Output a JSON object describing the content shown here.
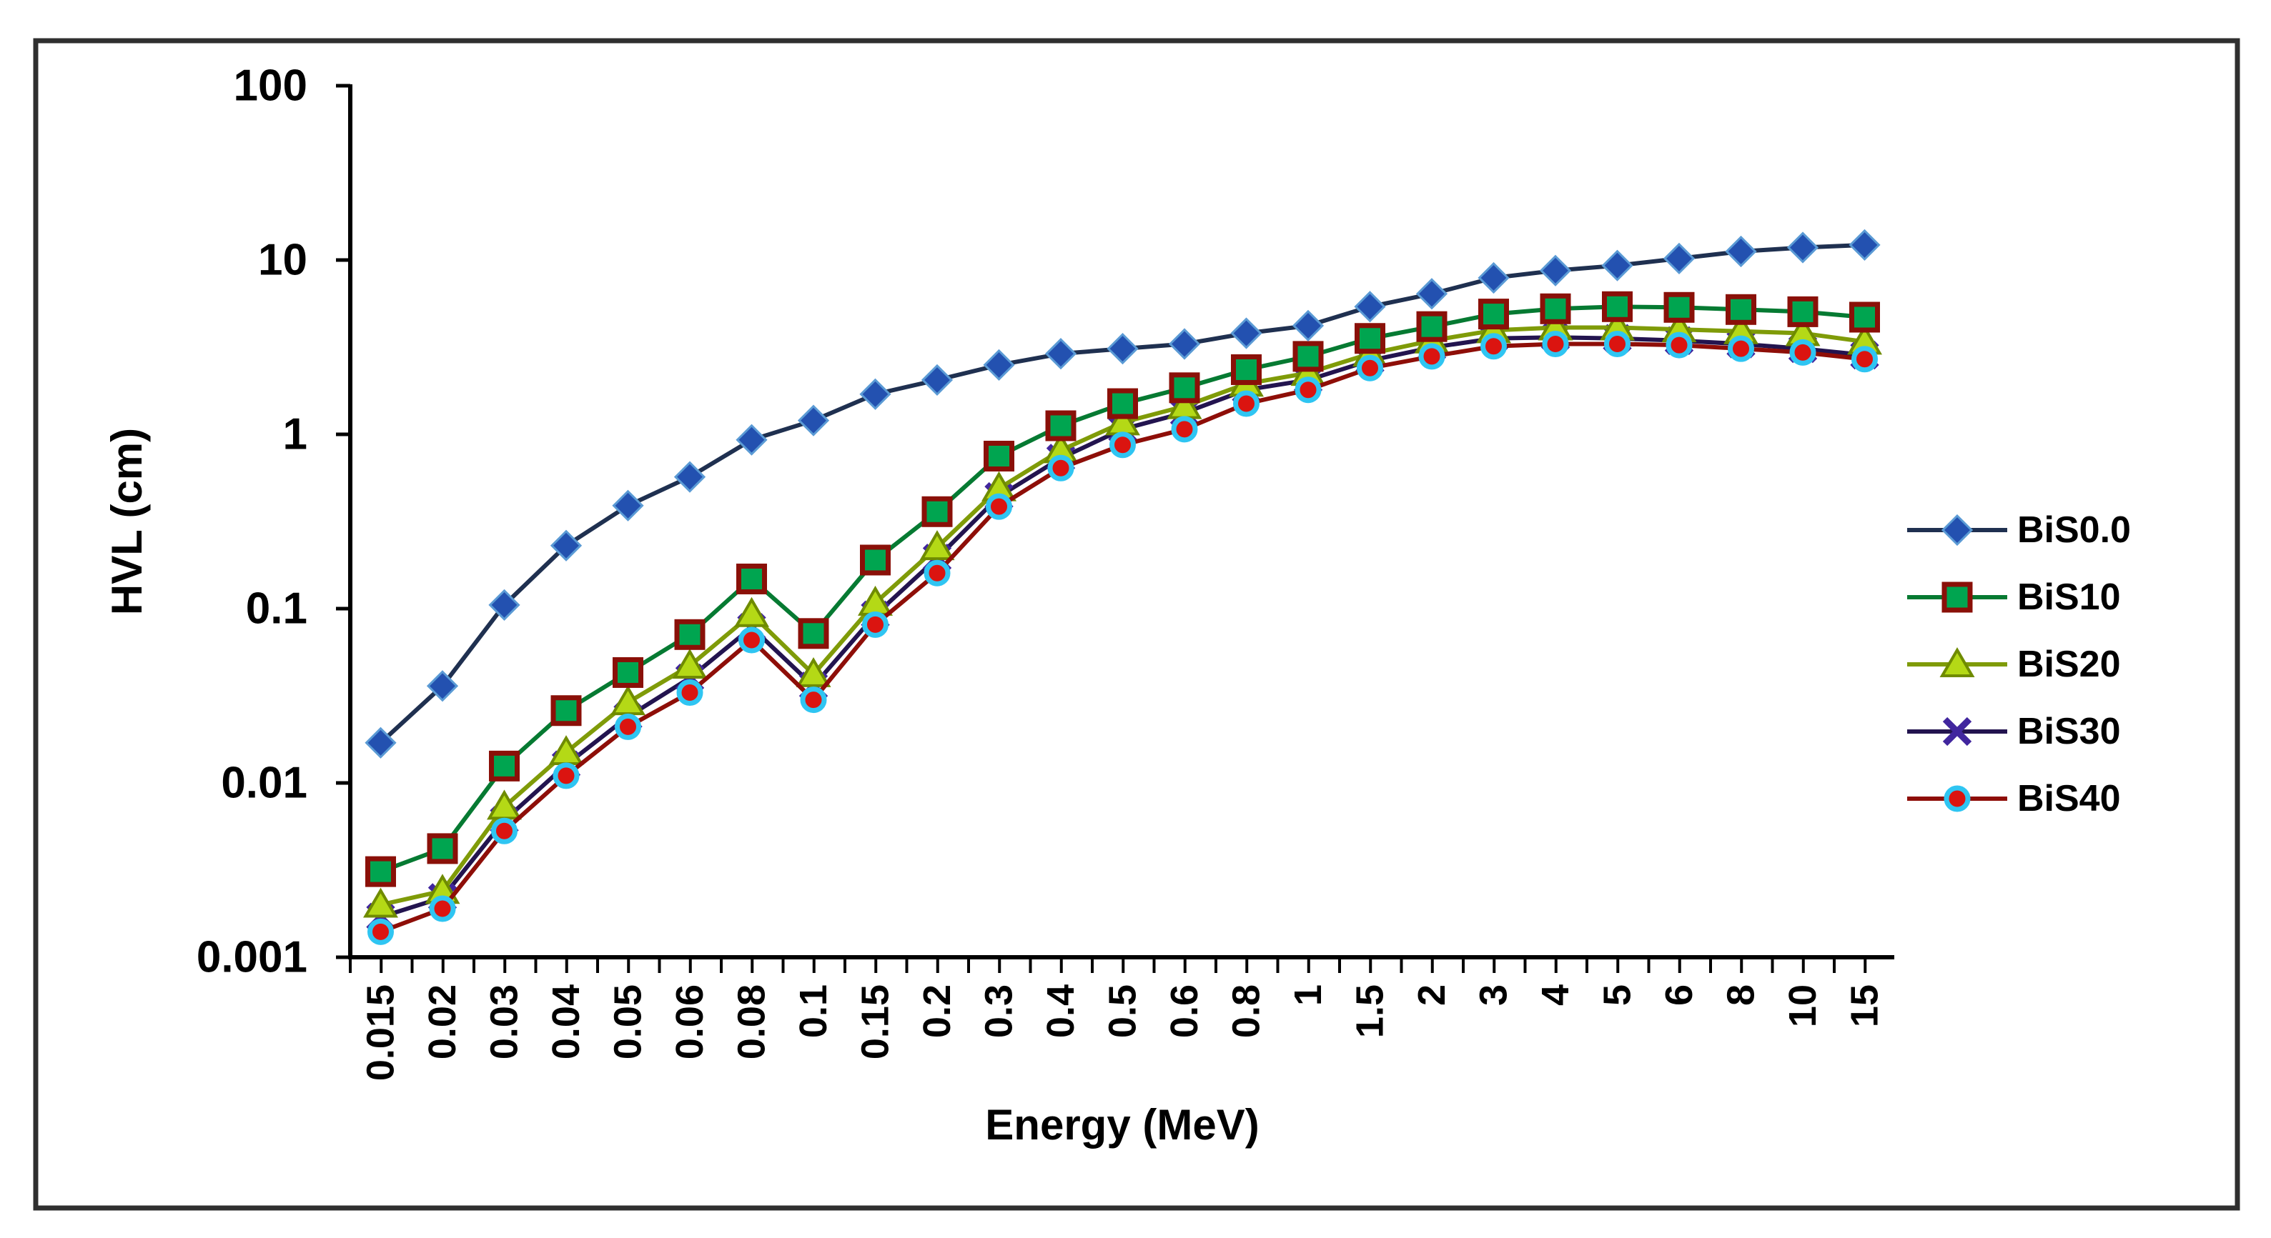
{
  "figure": {
    "background": "#ffffff",
    "border_color": "#2f2f2f",
    "axis_color": "#000000"
  },
  "chart_data": {
    "type": "line",
    "title": "",
    "xlabel": "Energy (MeV)",
    "ylabel": "HVL (cm)",
    "x_scale": "categorical",
    "y_scale": "log",
    "ylim": [
      0.001,
      100
    ],
    "y_tick_labels": [
      "100",
      "10",
      "1",
      "0.1",
      "0.01",
      "0.001"
    ],
    "grid": false,
    "legend_position": "right",
    "categories": [
      "0.015",
      "0.02",
      "0.03",
      "0.04",
      "0.05",
      "0.06",
      "0.08",
      "0.1",
      "0.15",
      "0.2",
      "0.3",
      "0.4",
      "0.5",
      "0.6",
      "0.8",
      "1",
      "1.5",
      "2",
      "3",
      "4",
      "5",
      "6",
      "8",
      "10",
      "15"
    ],
    "series": [
      {
        "name": "BiS0.0",
        "marker": "diamond",
        "line_color": "#1f3050",
        "marker_fill": "#2351b0",
        "marker_stroke": "#5b9bd5",
        "values": [
          0.017,
          0.036,
          0.105,
          0.23,
          0.39,
          0.57,
          0.93,
          1.2,
          1.7,
          2.05,
          2.5,
          2.9,
          3.1,
          3.3,
          3.8,
          4.2,
          5.4,
          6.4,
          7.9,
          8.7,
          9.3,
          10.2,
          11.2,
          11.8,
          12.2
        ]
      },
      {
        "name": "BiS10",
        "marker": "square",
        "line_color": "#067a32",
        "marker_fill": "#00a550",
        "marker_stroke": "#8a1008",
        "values": [
          0.0031,
          0.0042,
          0.0125,
          0.026,
          0.043,
          0.071,
          0.148,
          0.072,
          0.19,
          0.36,
          0.75,
          1.12,
          1.5,
          1.85,
          2.35,
          2.8,
          3.55,
          4.15,
          4.9,
          5.25,
          5.4,
          5.35,
          5.2,
          5.05,
          4.7
        ]
      },
      {
        "name": "BiS20",
        "marker": "triangle",
        "line_color": "#7f9b08",
        "marker_fill": "#b4d916",
        "marker_stroke": "#6f8b00",
        "values": [
          0.002,
          0.0024,
          0.0073,
          0.015,
          0.029,
          0.047,
          0.093,
          0.042,
          0.108,
          0.225,
          0.49,
          0.81,
          1.17,
          1.45,
          1.95,
          2.25,
          2.9,
          3.45,
          3.95,
          4.1,
          4.1,
          4.0,
          3.9,
          3.8,
          3.4
        ]
      },
      {
        "name": "BiS30",
        "marker": "x",
        "line_color": "#23144f",
        "marker_fill": "none",
        "marker_stroke": "#41269e",
        "values": [
          0.0017,
          0.0022,
          0.0061,
          0.0127,
          0.024,
          0.04,
          0.078,
          0.036,
          0.092,
          0.195,
          0.44,
          0.73,
          1.07,
          1.33,
          1.8,
          2.05,
          2.65,
          3.15,
          3.55,
          3.6,
          3.55,
          3.45,
          3.3,
          3.1,
          2.85
        ]
      },
      {
        "name": "BiS40",
        "marker": "circle",
        "line_color": "#8e0e08",
        "marker_fill": "#db1410",
        "marker_stroke": "#2fc5f2",
        "values": [
          0.0014,
          0.0019,
          0.0053,
          0.011,
          0.021,
          0.033,
          0.066,
          0.03,
          0.081,
          0.16,
          0.385,
          0.64,
          0.87,
          1.07,
          1.5,
          1.8,
          2.4,
          2.8,
          3.2,
          3.3,
          3.3,
          3.25,
          3.1,
          2.95,
          2.7
        ]
      }
    ]
  }
}
